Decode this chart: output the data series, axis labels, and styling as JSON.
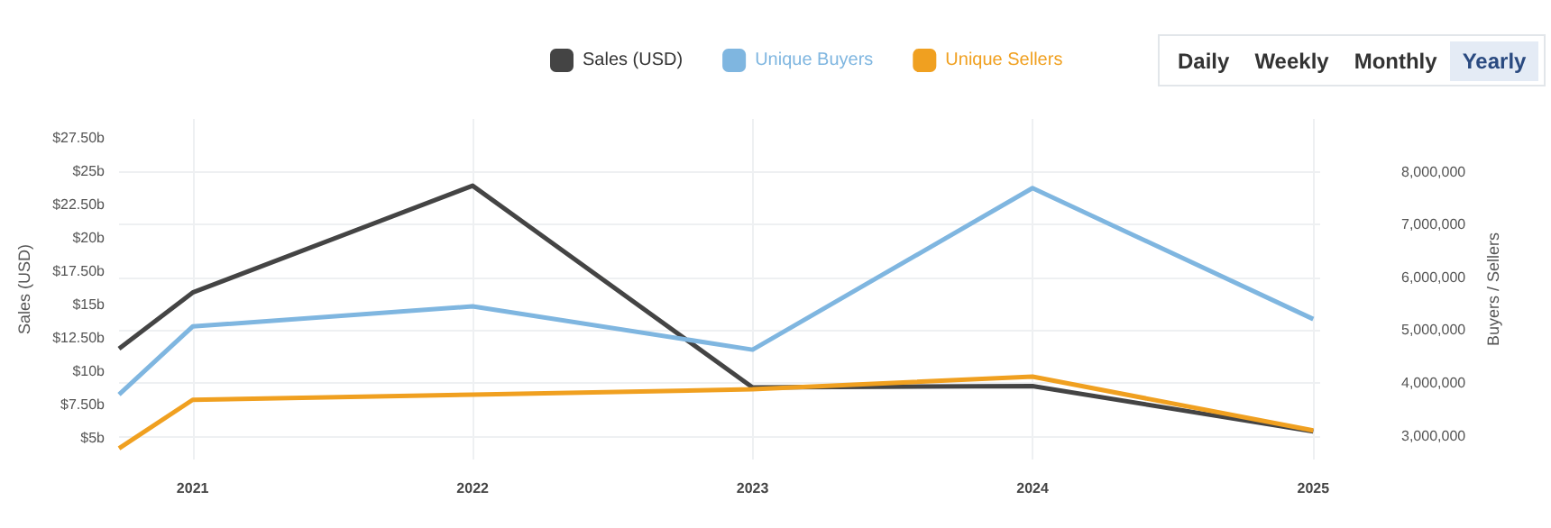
{
  "chart_data": {
    "type": "line",
    "ylabel": "Sales (USD)",
    "y2label": "Buyers / Sellers",
    "annotations": [
      "Daily",
      "Weekly",
      "Monthly",
      "Yearly"
    ],
    "x": [
      "2020-09-27",
      "2021",
      "2022",
      "2023",
      "2024",
      "2025"
    ],
    "series": [
      {
        "name": "Sales (USD)",
        "color": "#444444",
        "values": [
          11.7,
          15.9,
          23.9,
          8.8,
          8.9,
          5.5
        ]
      },
      {
        "name": "Unique Buyers",
        "color": "#7fb6e0",
        "axis": "y2",
        "values": [
          3780000,
          5070000,
          5450000,
          4630000,
          7690000,
          5210000
        ]
      },
      {
        "name": "Unique Sellers",
        "color": "#f0a020",
        "axis": "y2",
        "values": [
          2760000,
          3680000,
          3780000,
          3880000,
          4120000,
          3100000
        ]
      }
    ],
    "xlim": [
      "2020-09-27",
      "2025-01-10"
    ],
    "xticks": [
      "2021",
      "2022",
      "2023",
      "2024",
      "2025"
    ],
    "ylim": [
      3.4,
      28.9
    ],
    "yticks": [
      {
        "value": 5,
        "label": "$5b"
      },
      {
        "value": 7.5,
        "label": "$7.50b"
      },
      {
        "value": 10,
        "label": "$10b"
      },
      {
        "value": 12.5,
        "label": "$12.50b"
      },
      {
        "value": 15,
        "label": "$15b"
      },
      {
        "value": 17.5,
        "label": "$17.50b"
      },
      {
        "value": 20,
        "label": "$20b"
      },
      {
        "value": 22.5,
        "label": "$22.50b"
      },
      {
        "value": 25,
        "label": "$25b"
      },
      {
        "value": 27.5,
        "label": "$27.50b"
      }
    ],
    "y2lim": [
      2550000,
      9000000
    ],
    "y2ticks": [
      {
        "value": 3000000,
        "label": "3,000,000"
      },
      {
        "value": 4000000,
        "label": "4,000,000"
      },
      {
        "value": 5000000,
        "label": "5,000,000"
      },
      {
        "value": 6000000,
        "label": "6,000,000"
      },
      {
        "value": 7000000,
        "label": "7,000,000"
      },
      {
        "value": 8000000,
        "label": "8,000,000"
      }
    ],
    "grid": true,
    "legend": "top",
    "marker": "none",
    "line_style": "solid"
  }
}
